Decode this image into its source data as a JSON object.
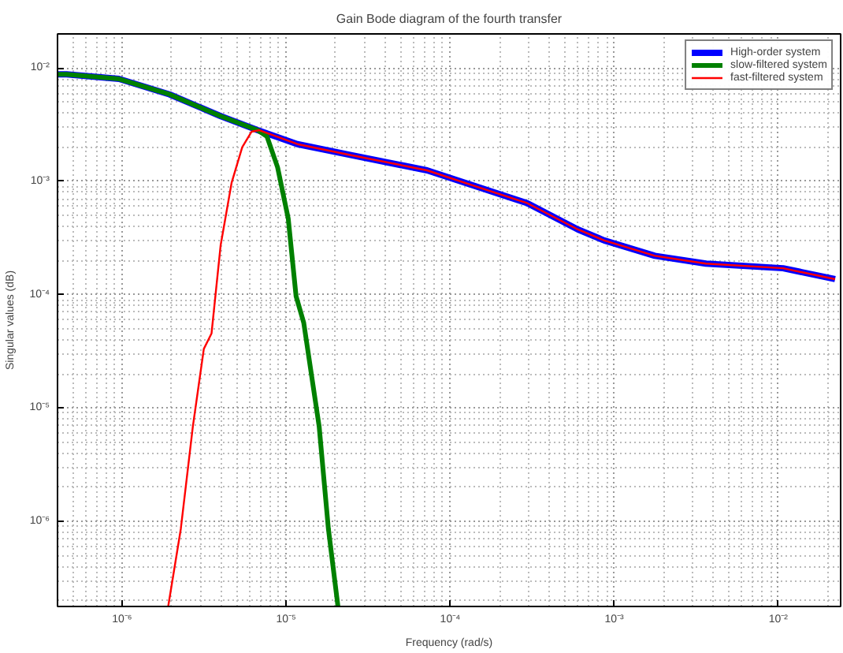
{
  "chart_data": {
    "type": "line",
    "title": "Gain Bode diagram of the fourth transfer",
    "xlabel": "Frequency (rad/s)",
    "ylabel": "Singular values (dB)",
    "log": "xy",
    "grid": true,
    "legend": "top right",
    "line_style": "solid",
    "xlim": [
      4.04e-07,
      0.024
    ],
    "ylim": [
      1.77e-07,
      0.02
    ],
    "xticks": [
      {
        "value": 1e-06,
        "label": "10⁻⁶"
      },
      {
        "value": 1e-05,
        "label": "10⁻⁵"
      },
      {
        "value": 0.0001,
        "label": "10⁻⁴"
      },
      {
        "value": 0.001,
        "label": "10⁻³"
      },
      {
        "value": 0.01,
        "label": "10⁻²"
      }
    ],
    "yticks": [
      {
        "value": 1e-06,
        "label": "10⁻⁶"
      },
      {
        "value": 1e-05,
        "label": "10⁻⁵"
      },
      {
        "value": 0.0001,
        "label": "10⁻⁴"
      },
      {
        "value": 0.001,
        "label": "10⁻³"
      },
      {
        "value": 0.01,
        "label": "10⁻²"
      }
    ],
    "series": [
      {
        "name": "High-order system",
        "color": "#0000ff",
        "x": [
          4.04e-07,
          4.59e-07,
          9.57e-07,
          1.95e-06,
          3.99e-06,
          6.7e-06,
          1.17e-05,
          2.45e-05,
          7.23e-05,
          0.000141,
          0.000294,
          0.000601,
          0.000869,
          0.00177,
          0.00362,
          0.0107,
          0.0222
        ],
        "values": [
          0.00881,
          0.00881,
          0.00802,
          0.00585,
          0.00376,
          0.00283,
          0.00213,
          0.00171,
          0.00125,
          0.00091,
          0.000643,
          0.000376,
          0.000301,
          0.00022,
          0.000188,
          0.000171,
          0.000137
        ]
      },
      {
        "name": "slow-filtered system",
        "color": "#008000",
        "x": [
          4.04e-07,
          4.59e-07,
          9.57e-07,
          1.95e-06,
          3.99e-06,
          6.7e-06,
          7.64e-06,
          8.87e-06,
          1.03e-05,
          1.15e-05,
          1.28e-05,
          1.59e-05,
          1.81e-05,
          2.07e-05
        ],
        "values": [
          0.00881,
          0.00881,
          0.00802,
          0.00585,
          0.00376,
          0.00283,
          0.00249,
          0.00133,
          0.000469,
          9.68e-05,
          5.66e-05,
          6.85e-06,
          8.55e-07,
          1.77e-07
        ]
      },
      {
        "name": "fast-filtered system",
        "color": "#ff0000",
        "x": [
          1.91e-06,
          2.28e-06,
          2.7e-06,
          3.15e-06,
          3.51e-06,
          3.99e-06,
          4.65e-06,
          5.4e-06,
          6.15e-06,
          6.86e-06,
          1.17e-05,
          2.45e-05,
          7.23e-05,
          0.000141,
          0.000294,
          0.000601,
          0.000869,
          0.00177,
          0.00362,
          0.0107,
          0.0222
        ],
        "values": [
          1.77e-07,
          8.55e-07,
          6.85e-06,
          3.32e-05,
          4.55e-05,
          0.000274,
          0.000968,
          0.002,
          0.00274,
          0.00283,
          0.00213,
          0.00171,
          0.00125,
          0.00091,
          0.000643,
          0.000376,
          0.000301,
          0.00022,
          0.000188,
          0.000171,
          0.000137
        ]
      }
    ]
  }
}
